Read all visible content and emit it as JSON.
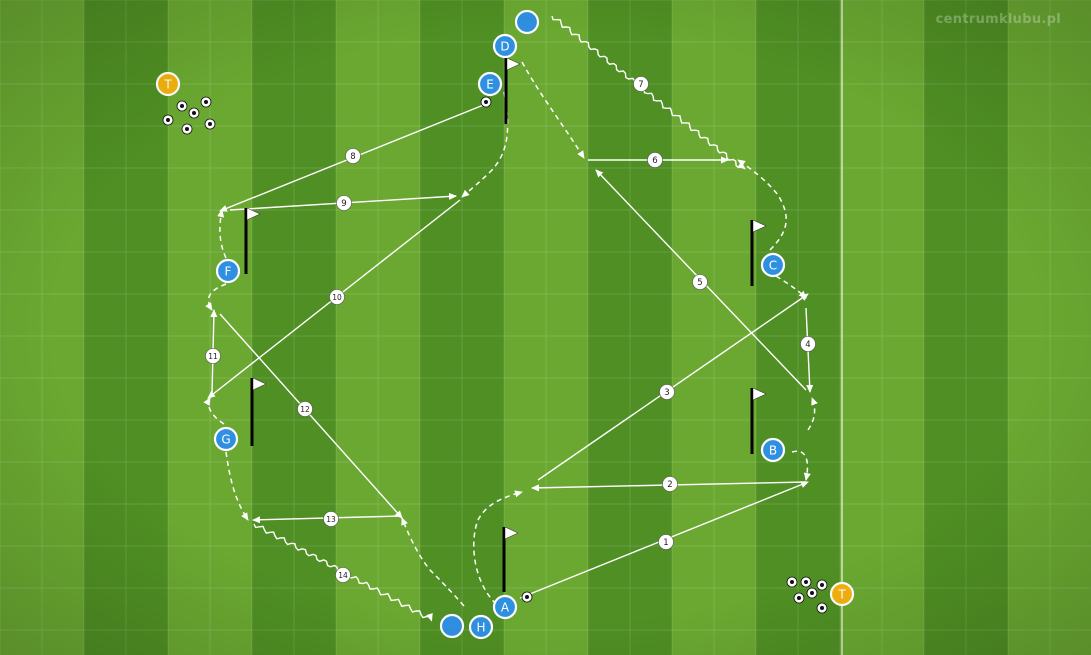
{
  "watermark": "centrumklubu.pl",
  "colors": {
    "grass_light": "#6aa831",
    "grass_dark": "#4f8f23",
    "player": "#2f8fe0",
    "coach": "#f2b20e",
    "line": "#ffffff",
    "flag_pole": "#000000"
  },
  "coaches": [
    {
      "label": "T"
    },
    {
      "label": "T"
    }
  ],
  "players": [
    {
      "label": "A"
    },
    {
      "label": "B"
    },
    {
      "label": "C"
    },
    {
      "label": "D"
    },
    {
      "label": "E"
    },
    {
      "label": "F"
    },
    {
      "label": "G"
    },
    {
      "label": "H"
    },
    {
      "label": ""
    },
    {
      "label": ""
    }
  ],
  "passes": [
    {
      "label": "1",
      "style": "pass"
    },
    {
      "label": "2",
      "style": "pass"
    },
    {
      "label": "3",
      "style": "pass"
    },
    {
      "label": "4",
      "style": "pass"
    },
    {
      "label": "5",
      "style": "pass"
    },
    {
      "label": "6",
      "style": "pass"
    },
    {
      "label": "7",
      "style": "dribble"
    },
    {
      "label": "8",
      "style": "pass"
    },
    {
      "label": "9",
      "style": "pass"
    },
    {
      "label": "10",
      "style": "pass"
    },
    {
      "label": "11",
      "style": "pass"
    },
    {
      "label": "12",
      "style": "pass"
    },
    {
      "label": "13",
      "style": "pass"
    },
    {
      "label": "14",
      "style": "dribble"
    }
  ]
}
